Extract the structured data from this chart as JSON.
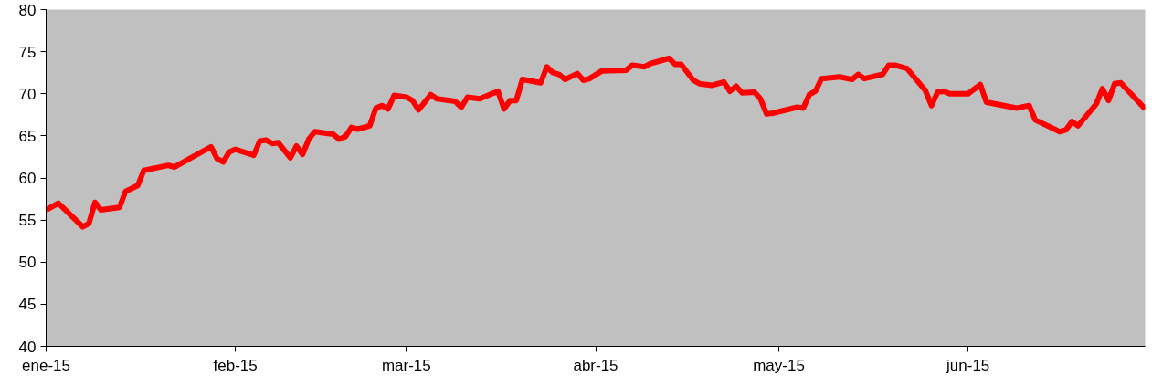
{
  "chart_data": {
    "type": "line",
    "grid": false,
    "marker": "none",
    "line_style": "solid",
    "xlim": [
      "2015-01-01",
      "2015-06-30"
    ],
    "xticks": [
      {
        "value": "2015-01-01",
        "label": "ene-15"
      },
      {
        "value": "2015-02-01",
        "label": "feb-15"
      },
      {
        "value": "2015-03-01",
        "label": "mar-15"
      },
      {
        "value": "2015-04-01",
        "label": "abr-15"
      },
      {
        "value": "2015-05-01",
        "label": "may-15"
      },
      {
        "value": "2015-06-01",
        "label": "jun-15"
      }
    ],
    "ylim": [
      40,
      80
    ],
    "yticks": [
      40,
      45,
      50,
      55,
      60,
      65,
      70,
      75,
      80
    ],
    "x": [
      "2015-01-01",
      "2015-01-03",
      "2015-01-07",
      "2015-01-08",
      "2015-01-09",
      "2015-01-10",
      "2015-01-13",
      "2015-01-14",
      "2015-01-16",
      "2015-01-17",
      "2015-01-21",
      "2015-01-22",
      "2015-01-23",
      "2015-01-25",
      "2015-01-28",
      "2015-01-29",
      "2015-01-30",
      "2015-01-31",
      "2015-02-01",
      "2015-02-04",
      "2015-02-05",
      "2015-02-06",
      "2015-02-07",
      "2015-02-08",
      "2015-02-10",
      "2015-02-11",
      "2015-02-12",
      "2015-02-13",
      "2015-02-14",
      "2015-02-17",
      "2015-02-18",
      "2015-02-19",
      "2015-02-20",
      "2015-02-21",
      "2015-02-23",
      "2015-02-24",
      "2015-02-25",
      "2015-02-26",
      "2015-02-27",
      "2015-03-01",
      "2015-03-02",
      "2015-03-03",
      "2015-03-05",
      "2015-03-06",
      "2015-03-09",
      "2015-03-10",
      "2015-03-11",
      "2015-03-13",
      "2015-03-16",
      "2015-03-17",
      "2015-03-18",
      "2015-03-19",
      "2015-03-20",
      "2015-03-23",
      "2015-03-24",
      "2015-03-25",
      "2015-03-26",
      "2015-03-27",
      "2015-03-29",
      "2015-03-30",
      "2015-03-31",
      "2015-04-02",
      "2015-04-06",
      "2015-04-07",
      "2015-04-09",
      "2015-04-10",
      "2015-04-13",
      "2015-04-14",
      "2015-04-15",
      "2015-04-17",
      "2015-04-18",
      "2015-04-20",
      "2015-04-22",
      "2015-04-23",
      "2015-04-24",
      "2015-04-25",
      "2015-04-27",
      "2015-04-28",
      "2015-04-29",
      "2015-04-30",
      "2015-05-04",
      "2015-05-05",
      "2015-05-06",
      "2015-05-07",
      "2015-05-08",
      "2015-05-11",
      "2015-05-13",
      "2015-05-14",
      "2015-05-15",
      "2015-05-18",
      "2015-05-19",
      "2015-05-20",
      "2015-05-22",
      "2015-05-25",
      "2015-05-26",
      "2015-05-27",
      "2015-05-28",
      "2015-05-29",
      "2015-06-01",
      "2015-06-03",
      "2015-06-04",
      "2015-06-09",
      "2015-06-11",
      "2015-06-12",
      "2015-06-16",
      "2015-06-17",
      "2015-06-18",
      "2015-06-19",
      "2015-06-22",
      "2015-06-23",
      "2015-06-24",
      "2015-06-25",
      "2015-06-26",
      "2015-06-30"
    ],
    "series": [
      {
        "color": "#ff0000",
        "values": [
          56.2,
          57.0,
          54.2,
          54.6,
          57.1,
          56.2,
          56.5,
          58.4,
          59.1,
          60.9,
          61.5,
          61.3,
          61.7,
          62.5,
          63.7,
          62.3,
          61.9,
          63.1,
          63.4,
          62.7,
          64.4,
          64.5,
          64.1,
          64.2,
          62.4,
          63.8,
          62.8,
          64.6,
          65.5,
          65.2,
          64.6,
          64.9,
          66.0,
          65.8,
          66.2,
          68.3,
          68.6,
          68.2,
          69.8,
          69.6,
          69.2,
          68.1,
          69.9,
          69.4,
          69.1,
          68.4,
          69.6,
          69.4,
          70.3,
          68.2,
          69.2,
          69.2,
          71.7,
          71.3,
          73.2,
          72.5,
          72.3,
          71.7,
          72.4,
          71.6,
          71.8,
          72.7,
          72.8,
          73.4,
          73.2,
          73.6,
          74.2,
          73.5,
          73.5,
          71.6,
          71.2,
          71.0,
          71.4,
          70.3,
          70.9,
          70.1,
          70.2,
          69.4,
          67.6,
          67.7,
          68.4,
          68.3,
          69.9,
          70.3,
          71.8,
          72.0,
          71.7,
          72.3,
          71.8,
          72.3,
          73.4,
          73.4,
          73.0,
          70.4,
          68.6,
          70.2,
          70.3,
          70.0,
          70.0,
          71.1,
          69.0,
          68.3,
          68.6,
          66.9,
          65.5,
          65.7,
          66.7,
          66.2,
          68.8,
          70.6,
          69.2,
          71.2,
          71.3,
          68.2
        ]
      }
    ]
  }
}
